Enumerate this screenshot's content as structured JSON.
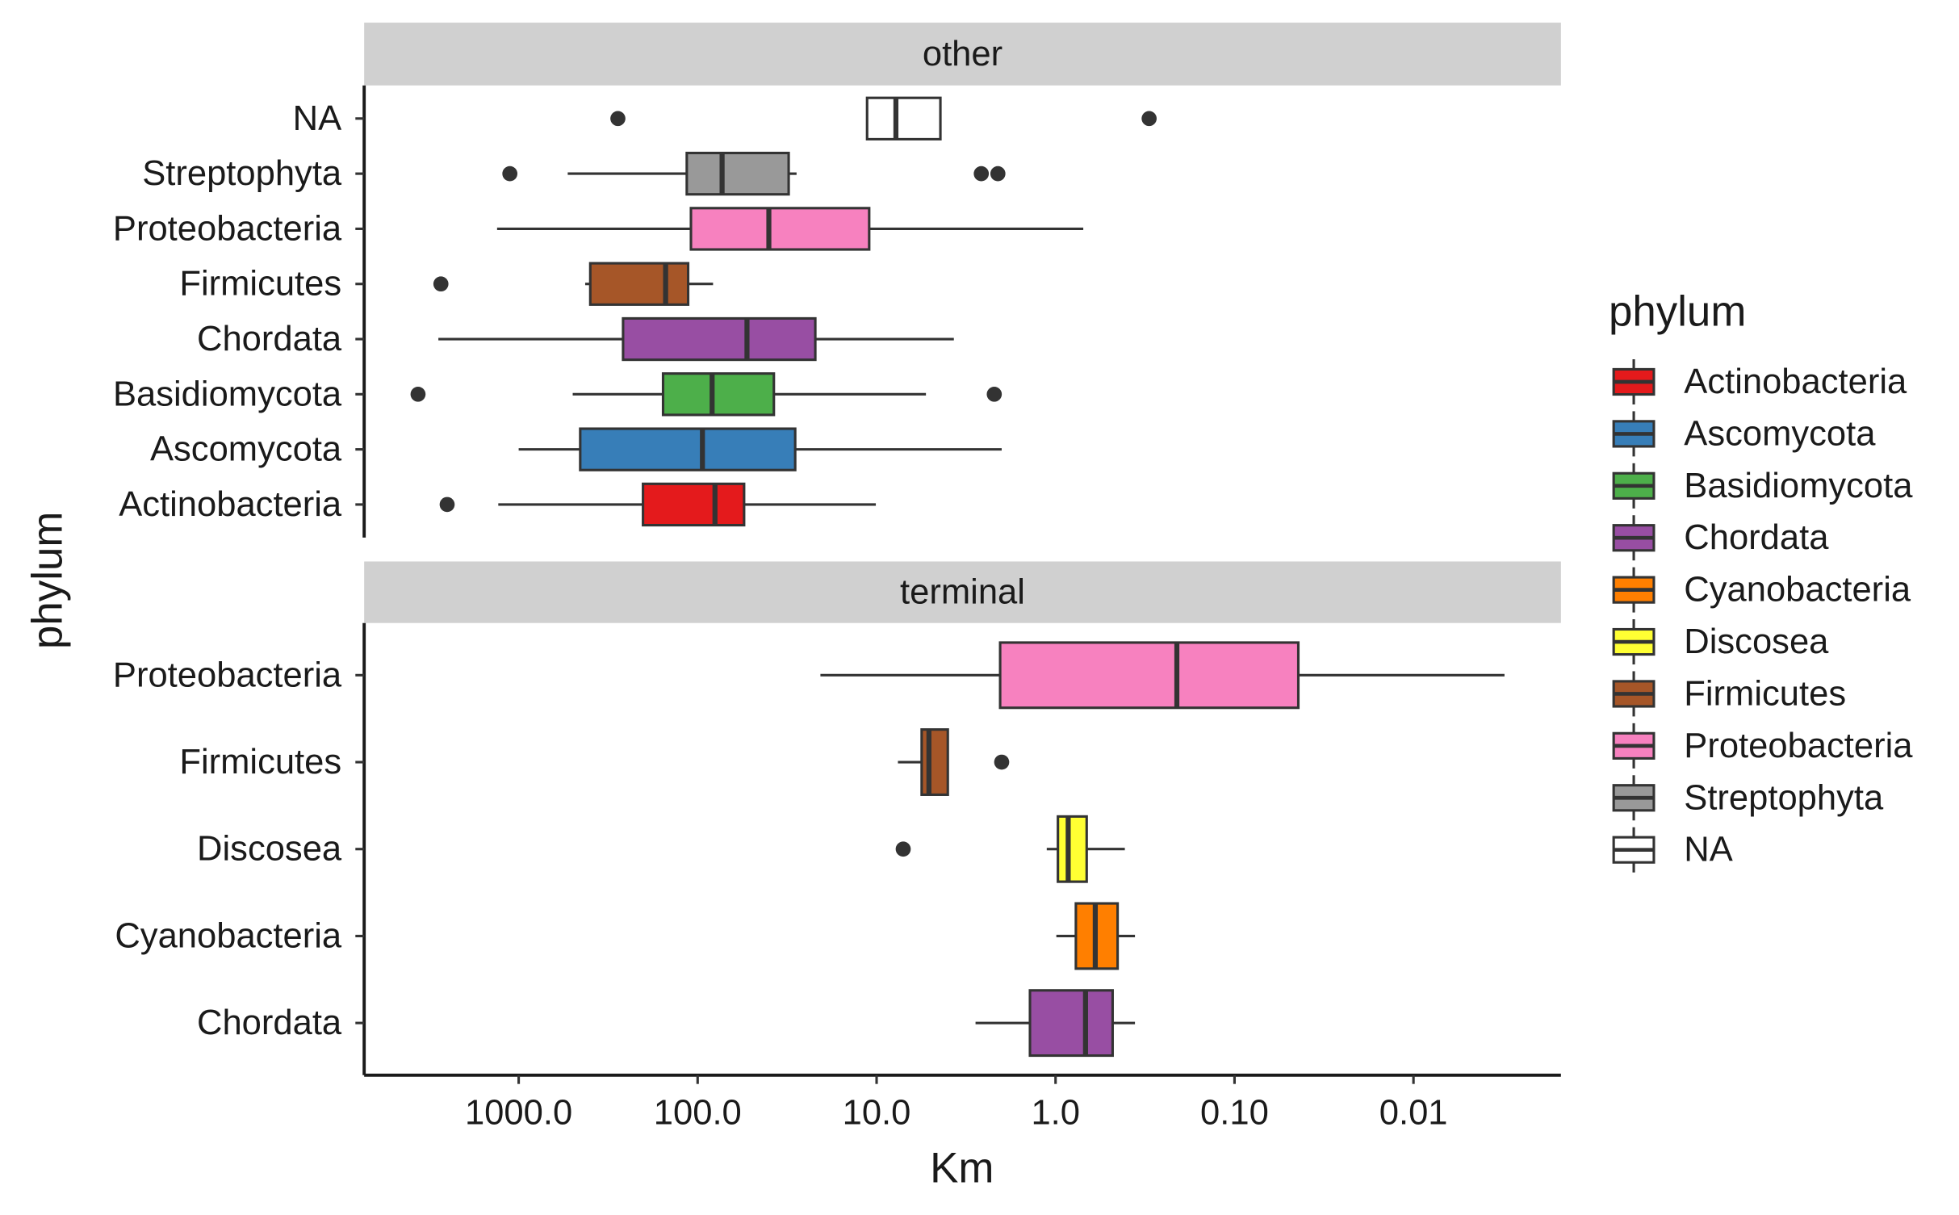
{
  "chart_data": {
    "type": "boxplot",
    "xlabel": "Km",
    "ylabel": "phylum",
    "log_x": true,
    "xlim": [
      7300,
      0.0015
    ],
    "xticks": [
      {
        "value": 1000,
        "label": "1000.0"
      },
      {
        "value": 100,
        "label": "100.0"
      },
      {
        "value": 10,
        "label": "10.0"
      },
      {
        "value": 1,
        "label": "1.0"
      },
      {
        "value": 0.1,
        "label": "0.10"
      },
      0.01
    ],
    "legend": {
      "title": "phylum",
      "position": "right",
      "entries": [
        {
          "name": "Actinobacteria",
          "color": "#e41a1c"
        },
        {
          "name": "Ascomycota",
          "color": "#377eb8"
        },
        {
          "name": "Basidiomycota",
          "color": "#4daf4a"
        },
        {
          "name": "Chordata",
          "color": "#984ea3"
        },
        {
          "name": "Cyanobacteria",
          "color": "#ff7f00"
        },
        {
          "name": "Discosea",
          "color": "#ffff33"
        },
        {
          "name": "Firmicutes",
          "color": "#a65628"
        },
        {
          "name": "Proteobacteria",
          "color": "#f781bf"
        },
        {
          "name": "Streptophyta",
          "color": "#999999"
        },
        {
          "name": "NA",
          "color": "#ffffff"
        }
      ]
    },
    "facets": [
      {
        "title": "other",
        "categories": [
          "NA",
          "Streptophyta",
          "Proteobacteria",
          "Firmicutes",
          "Chordata",
          "Basidiomycota",
          "Ascomycota",
          "Actinobacteria"
        ],
        "boxes": [
          {
            "min": 4.4,
            "q1": 4.4,
            "median": 7.8,
            "q3": 11.3,
            "max": 11.3,
            "outliers": [
              279,
              0.3
            ]
          },
          {
            "min": 28,
            "q1": 31,
            "median": 73,
            "q3": 115,
            "max": 532,
            "outliers": [
              1120,
              2.6,
              2.1
            ]
          },
          {
            "min": 0.7,
            "q1": 11,
            "median": 40,
            "q3": 109,
            "max": 1320,
            "outliers": []
          },
          {
            "min": 82,
            "q1": 113,
            "median": 151,
            "q3": 398,
            "max": 425,
            "outliers": [
              2720
            ]
          },
          {
            "min": 3.7,
            "q1": 22,
            "median": 53,
            "q3": 261,
            "max": 2810,
            "outliers": []
          },
          {
            "min": 5.3,
            "q1": 37.5,
            "median": 83,
            "q3": 156,
            "max": 499,
            "outliers": [
              3650,
              2.2
            ]
          },
          {
            "min": 2.0,
            "q1": 28.5,
            "median": 94,
            "q3": 453,
            "max": 1000,
            "outliers": []
          },
          {
            "min": 10.1,
            "q1": 55,
            "median": 80,
            "q3": 202,
            "max": 1300,
            "outliers": [
              2510
            ]
          }
        ]
      },
      {
        "title": "terminal",
        "categories": [
          "Proteobacteria",
          "Firmicutes",
          "Discosea",
          "Cyanobacteria",
          "Chordata"
        ],
        "boxes": [
          {
            "min": 0.0031,
            "q1": 0.044,
            "median": 0.21,
            "q3": 2.04,
            "max": 20.6,
            "outliers": []
          },
          {
            "min": 4.0,
            "q1": 4.0,
            "median": 5.1,
            "q3": 5.6,
            "max": 7.6,
            "outliers": [
              2.0
            ]
          },
          {
            "min": 0.41,
            "q1": 0.67,
            "median": 0.85,
            "q3": 0.97,
            "max": 1.12,
            "outliers": [
              7.1
            ]
          },
          {
            "min": 0.36,
            "q1": 0.45,
            "median": 0.6,
            "q3": 0.77,
            "max": 0.99,
            "outliers": []
          },
          {
            "min": 0.36,
            "q1": 0.48,
            "median": 0.68,
            "q3": 1.39,
            "max": 2.8,
            "outliers": []
          }
        ]
      }
    ]
  }
}
